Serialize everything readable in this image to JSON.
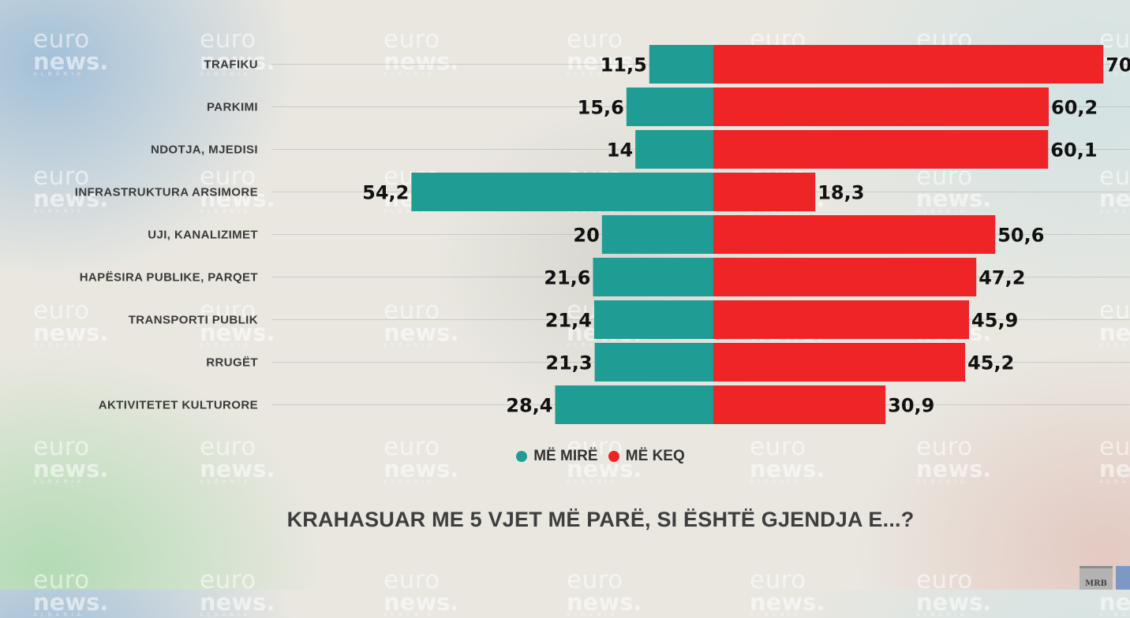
{
  "watermark": {
    "line1": "euro",
    "line2": "news.",
    "line3": "ALBANIA"
  },
  "chart_data": {
    "type": "bar",
    "subtype": "diverging-horizontal",
    "title": "KRAHASUAR ME 5 VJET MË PARË, SI ËSHTË GJENDJA E...?",
    "categories": [
      "TRAFIKU",
      "PARKIMI",
      "NDOTJA, MJEDISI",
      "INFRASTRUKTURA ARSIMORE",
      "UJI, KANALIZIMET",
      "HAPËSIRA PUBLIKE, PARQET",
      "TRANSPORTI PUBLIK",
      "RRUGËT",
      "AKTIVITETET KULTURORE"
    ],
    "series": [
      {
        "name": "MË MIRË",
        "color": "#1f9d94",
        "values": [
          11.5,
          15.6,
          14,
          54.2,
          20,
          21.6,
          21.4,
          21.3,
          28.4
        ],
        "labels": [
          "11,5",
          "15,6",
          "14",
          "54,2",
          "20",
          "21,6",
          "21,4",
          "21,3",
          "28,4"
        ]
      },
      {
        "name": "MË KEQ",
        "color": "#ef2427",
        "values": [
          70,
          60.2,
          60.1,
          18.3,
          50.6,
          47.2,
          45.9,
          45.2,
          30.9
        ],
        "labels": [
          "70",
          "60,2",
          "60,1",
          "18,3",
          "50,6",
          "47,2",
          "45,9",
          "45,2",
          "30,9"
        ]
      }
    ],
    "legend_position": "bottom-center",
    "grid": true
  },
  "logos": {
    "mrb": "MRB"
  }
}
